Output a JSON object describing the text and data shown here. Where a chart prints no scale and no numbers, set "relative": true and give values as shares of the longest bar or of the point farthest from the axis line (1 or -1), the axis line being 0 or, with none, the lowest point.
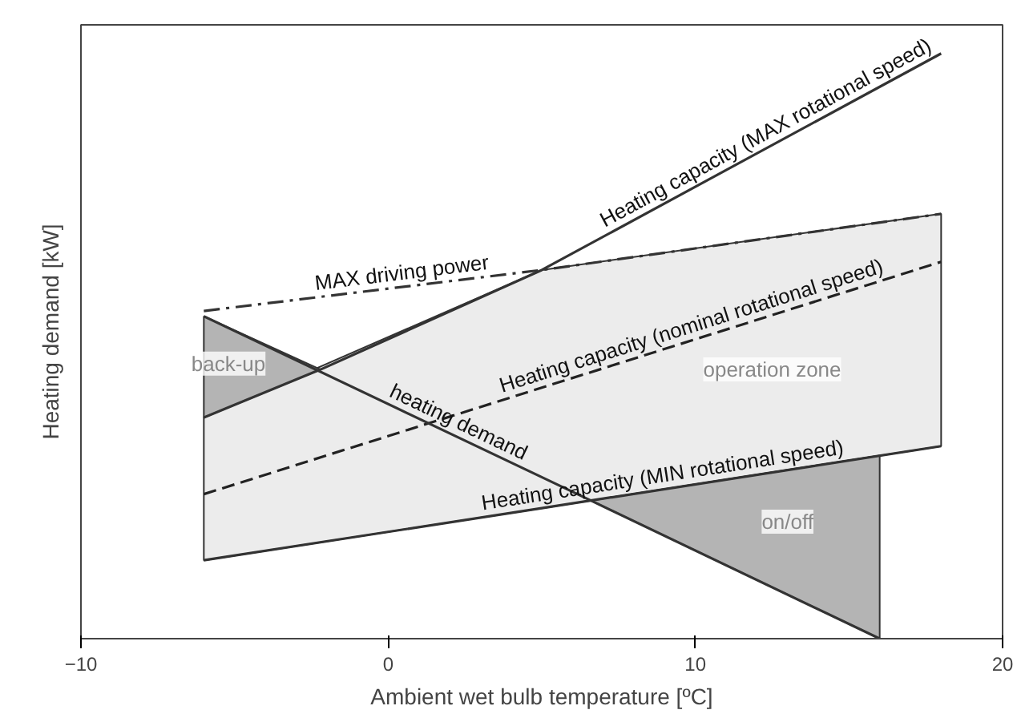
{
  "chart_data": {
    "type": "line",
    "relative": true,
    "xlabel": "Ambient wet bulb temperature [ºC]",
    "ylabel": "Heating demand [kW]",
    "xlim": [
      -10,
      20
    ],
    "xticks": [
      -10,
      0,
      10,
      20
    ],
    "grid": false,
    "marker": "none",
    "series": [
      {
        "name": "Heating capacity (MAX rotational speed)",
        "color": "#333333",
        "line_style": "solid",
        "x": [
          -6,
          -2.2,
          5,
          18
        ],
        "values": [
          0.378,
          0.46,
          0.63,
          1.0
        ],
        "lower": [
          0.378,
          0.46,
          null,
          null
        ],
        "upper": [
          0.551,
          0.46,
          null,
          null
        ]
      },
      {
        "name": "MAX driving power",
        "color": "#333333",
        "line_style": "dashdot",
        "x": [
          -6,
          5,
          18
        ],
        "values": [
          0.56,
          0.63,
          0.726
        ]
      },
      {
        "name": "Heating capacity (nominal rotational speed)",
        "color": "#222222",
        "line_style": "dashed",
        "x": [
          -6,
          18
        ],
        "values": [
          0.247,
          0.644
        ]
      },
      {
        "name": "Heating capacity (MIN rotational speed)",
        "color": "#333333",
        "line_style": "solid",
        "x": [
          -6,
          5,
          18
        ],
        "values": [
          0.134,
          0.223,
          0.329
        ],
        "lower": [
          0.134,
          0.223,
          0.329
        ],
        "upper": [
          0.378,
          0.63,
          0.726
        ]
      },
      {
        "name": "heating demand",
        "color": "#333333",
        "line_style": "solid",
        "x": [
          -6,
          6.6,
          16
        ],
        "values": [
          0.551,
          0.236,
          0
        ],
        "lower": [
          null,
          0.236,
          0
        ],
        "upper": [
          null,
          0.236,
          0.313
        ]
      }
    ],
    "annotations": [
      "back-up",
      "operation zone",
      "on/off"
    ]
  }
}
